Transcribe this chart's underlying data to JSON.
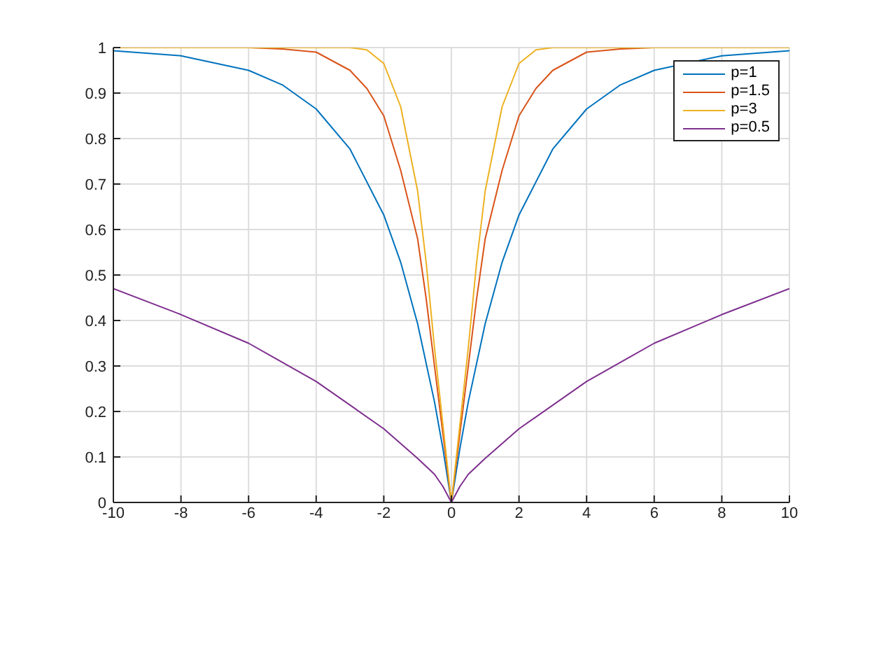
{
  "chart_data": {
    "type": "line",
    "xlim": [
      -10,
      10
    ],
    "ylim": [
      0,
      1
    ],
    "xticks": [
      -10,
      -8,
      -6,
      -4,
      -2,
      0,
      2,
      4,
      6,
      8,
      10
    ],
    "yticks": [
      0,
      0.1,
      0.2,
      0.3,
      0.4,
      0.5,
      0.6,
      0.7,
      0.8,
      0.9,
      1
    ],
    "grid": true,
    "legend": "top right",
    "marker": "none",
    "line_style": "solid",
    "series": [
      {
        "name": "p=1",
        "color": "#0072bd",
        "x": [
          -10,
          -8,
          -6,
          -5,
          -4,
          -3,
          -2,
          -1.5,
          -1,
          -0.5,
          -0.25,
          0,
          0.25,
          0.5,
          1,
          1.5,
          2,
          3,
          4,
          5,
          6,
          8,
          10
        ],
        "values": [
          0.993,
          0.982,
          0.95,
          0.918,
          0.865,
          0.777,
          0.632,
          0.528,
          0.393,
          0.221,
          0.118,
          0,
          0.118,
          0.221,
          0.393,
          0.528,
          0.632,
          0.777,
          0.865,
          0.918,
          0.95,
          0.982,
          0.993
        ]
      },
      {
        "name": "p=1.5",
        "color": "#d95319",
        "x": [
          -10,
          -6,
          -5,
          -4,
          -3,
          -2.5,
          -2,
          -1.5,
          -1,
          -0.75,
          -0.5,
          -0.25,
          0,
          0.25,
          0.5,
          0.75,
          1,
          1.5,
          2,
          2.5,
          3,
          4,
          5,
          6,
          10
        ],
        "values": [
          1,
          1,
          0.997,
          0.99,
          0.95,
          0.91,
          0.85,
          0.73,
          0.58,
          0.45,
          0.3,
          0.15,
          0,
          0.15,
          0.3,
          0.45,
          0.58,
          0.73,
          0.85,
          0.91,
          0.95,
          0.99,
          0.997,
          1,
          1
        ]
      },
      {
        "name": "p=3",
        "color": "#edb120",
        "x": [
          -10,
          -4,
          -3,
          -2.5,
          -2,
          -1.5,
          -1,
          -0.75,
          -0.5,
          -0.25,
          0,
          0.25,
          0.5,
          0.75,
          1,
          1.5,
          2,
          2.5,
          3,
          4,
          10
        ],
        "values": [
          1,
          1,
          1,
          0.995,
          0.965,
          0.87,
          0.685,
          0.53,
          0.34,
          0.17,
          0,
          0.17,
          0.34,
          0.53,
          0.685,
          0.87,
          0.965,
          0.995,
          1,
          1,
          1
        ]
      },
      {
        "name": "p=0.5",
        "color": "#7e2f8e",
        "x": [
          -10,
          -8,
          -6,
          -4,
          -2,
          -1,
          -0.5,
          -0.25,
          0,
          0.25,
          0.5,
          1,
          2,
          4,
          6,
          8,
          10
        ],
        "values": [
          0.47,
          0.413,
          0.35,
          0.266,
          0.162,
          0.097,
          0.062,
          0.035,
          0,
          0.035,
          0.062,
          0.097,
          0.162,
          0.266,
          0.35,
          0.413,
          0.47
        ]
      }
    ]
  }
}
